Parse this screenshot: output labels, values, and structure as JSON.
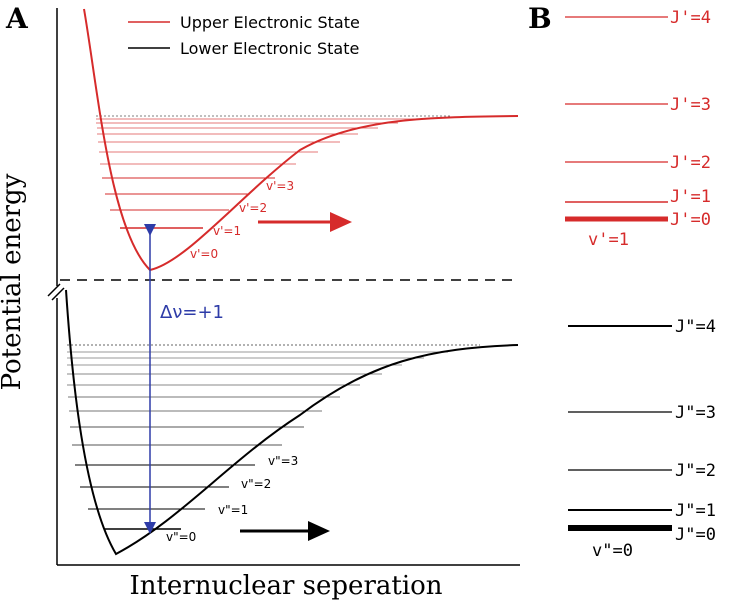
{
  "panel_a": {
    "label": "A",
    "ylabel": "Potential energy",
    "xlabel": "Internuclear seperation",
    "legend": [
      {
        "text": "Upper Electronic State",
        "color": "#d62b2b"
      },
      {
        "text": "Lower Electronic State",
        "color": "#000000"
      }
    ],
    "transition_label": "Δν=+1",
    "transition_color": "#2e3ca8",
    "upper_levels": [
      "v'=0",
      "v'=1",
      "v'=2",
      "v'=3"
    ],
    "lower_levels": [
      "v\"=0",
      "v\"=1",
      "v\"=2",
      "v\"=3"
    ]
  },
  "panel_b": {
    "label": "B",
    "upper": {
      "vib_label": "v'=1",
      "color": "#d62b2b",
      "rot_labels": [
        "J'=0",
        "J'=1",
        "J'=2",
        "J'=3",
        "J'=4"
      ]
    },
    "lower": {
      "vib_label": "v\"=0",
      "color": "#000000",
      "rot_labels": [
        "J\"=0",
        "J\"=1",
        "J\"=2",
        "J\"=3",
        "J\"=4"
      ]
    }
  }
}
